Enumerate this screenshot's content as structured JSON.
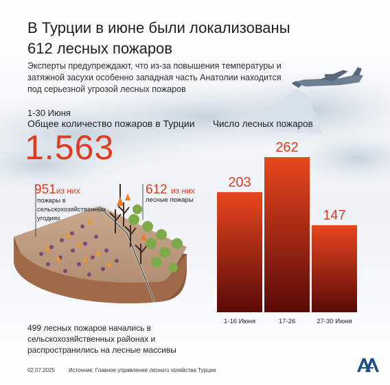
{
  "title": "В Турции в июне были локализованы 612 лесных пожаров",
  "lead": "Эксперты предупреждают, что из-за повышения температуры и затяжной засухи особенно западная часть Анатолии находится под серьезной угрозой лесных пожаров",
  "period": "1-30 Июня",
  "total_label": "Общее количество пожаров в Турции",
  "total_value": "1.563",
  "agri": {
    "count": "951",
    "suffix": "из них",
    "desc": "пожары в сельскохозяйственных угодиях"
  },
  "forest": {
    "count": "612",
    "suffix": "из них",
    "desc": "лесные пожары"
  },
  "note": "499 лесных пожаров начались в сельскохозяйственных районах и распространились на лесные массивы",
  "footer": {
    "date": "02.07.2025",
    "source": "Источник: Главное управление лесного хозяйства Турции"
  },
  "colors": {
    "accent": "#e03a1f",
    "bar_top": "#e8471e",
    "bar_bottom": "#5a0a08"
  },
  "icons": [
    "airplane-icon",
    "burning-field-illustration",
    "aa-logo-icon"
  ],
  "chart_data": {
    "type": "bar",
    "title": "Число лесных пожаров",
    "categories": [
      "1-16 Июня",
      "17-26",
      "27-30 Июня"
    ],
    "values": [
      203,
      262,
      147
    ],
    "ylim": [
      0,
      262
    ],
    "grid": false,
    "xlabel": "",
    "ylabel": ""
  }
}
